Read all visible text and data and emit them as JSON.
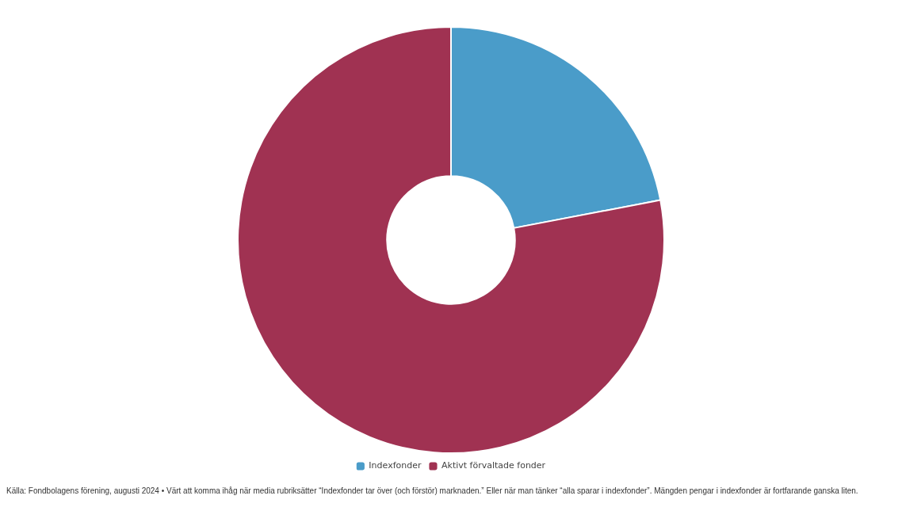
{
  "chart_data": {
    "type": "donut",
    "categories": [
      "Indexfonder",
      "Aktivt förvaltade fonder"
    ],
    "values": [
      22,
      78
    ],
    "colors": [
      "#4a9cc9",
      "#a03252"
    ],
    "legend": "bottom",
    "annotations": [
      "Källa: Fondbolagens förening, augusti 2024 • Värt att komma ihåg när media rubriksätter “Indexfonder tar över (och förstör) marknaden.” Eller när man tänker “alla sparar i indexfonder”. Mängden pengar i indexfonder är fortfarande ganska liten."
    ]
  }
}
